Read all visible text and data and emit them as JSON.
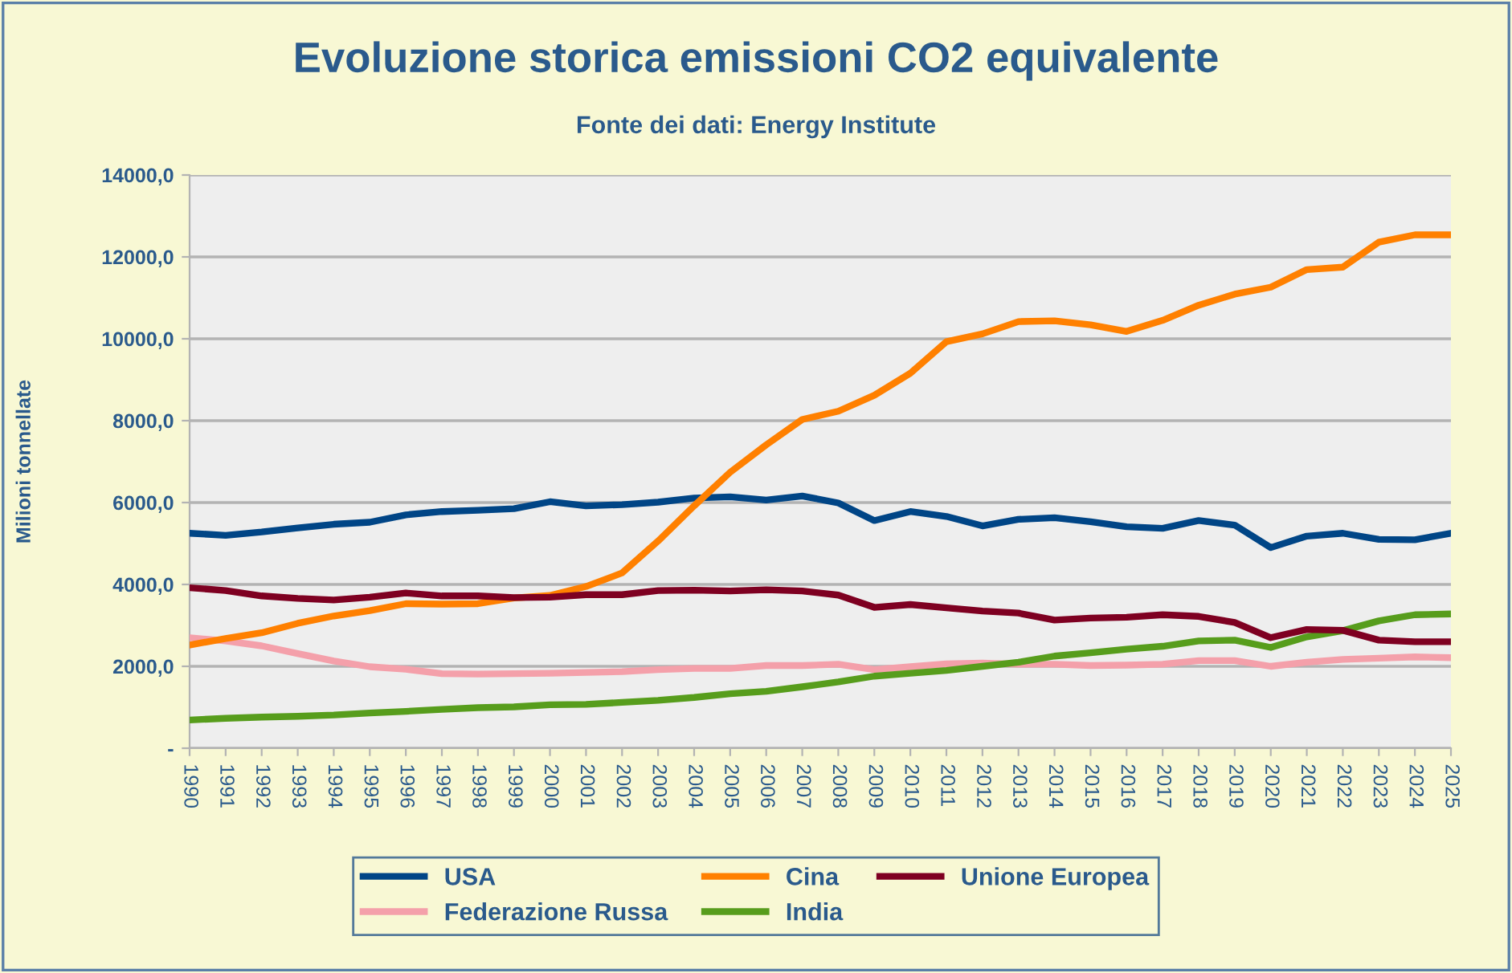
{
  "chart_data": {
    "type": "line",
    "title": "Evoluzione storica emissioni CO2 equivalente",
    "subtitle": "Fonte dei dati: Energy Institute",
    "ylabel": "Milioni tonnellate",
    "categories": [
      "1990",
      "1991",
      "1992",
      "1993",
      "1994",
      "1995",
      "1996",
      "1997",
      "1998",
      "1999",
      "2000",
      "2001",
      "2002",
      "2003",
      "2004",
      "2005",
      "2006",
      "2007",
      "2008",
      "2009",
      "2010",
      "2011",
      "2012",
      "2013",
      "2014",
      "2015",
      "2016",
      "2017",
      "2018",
      "2019",
      "2020",
      "2021",
      "2022",
      "2023",
      "2024",
      "2025"
    ],
    "series": [
      {
        "name": "USA",
        "color": "#004586",
        "values": [
          5250,
          5200,
          5280,
          5380,
          5470,
          5520,
          5700,
          5780,
          5810,
          5850,
          6020,
          5920,
          5950,
          6010,
          6110,
          6140,
          6060,
          6160,
          5990,
          5560,
          5780,
          5660,
          5430,
          5590,
          5630,
          5530,
          5410,
          5370,
          5560,
          5450,
          4900,
          5180,
          5250,
          5100,
          5090,
          5250
        ]
      },
      {
        "name": "Federazione Russa",
        "color": "#f4a0aa",
        "values": [
          2700,
          2620,
          2500,
          2310,
          2130,
          1990,
          1930,
          1820,
          1810,
          1820,
          1830,
          1850,
          1870,
          1920,
          1950,
          1950,
          2020,
          2020,
          2050,
          1920,
          1990,
          2060,
          2080,
          2050,
          2050,
          2020,
          2030,
          2050,
          2140,
          2140,
          2000,
          2100,
          2170,
          2200,
          2230,
          2210
        ]
      },
      {
        "name": "Cina",
        "color": "#ff8000",
        "values": [
          2520,
          2680,
          2820,
          3050,
          3230,
          3360,
          3530,
          3520,
          3530,
          3670,
          3730,
          3950,
          4280,
          5060,
          5920,
          6740,
          7410,
          8030,
          8230,
          8620,
          9160,
          9930,
          10120,
          10420,
          10440,
          10340,
          10180,
          10450,
          10820,
          11090,
          11260,
          11690,
          11750,
          12360,
          12540,
          12540
        ]
      },
      {
        "name": "India",
        "color": "#579d1c",
        "values": [
          690,
          730,
          760,
          780,
          810,
          860,
          900,
          950,
          990,
          1010,
          1060,
          1070,
          1120,
          1170,
          1240,
          1330,
          1390,
          1500,
          1620,
          1760,
          1830,
          1900,
          2000,
          2100,
          2250,
          2330,
          2420,
          2490,
          2620,
          2640,
          2460,
          2720,
          2870,
          3110,
          3260,
          3280
        ]
      },
      {
        "name": "Unione Europea",
        "color": "#7e0021",
        "values": [
          3920,
          3850,
          3720,
          3660,
          3620,
          3690,
          3790,
          3720,
          3720,
          3680,
          3690,
          3750,
          3750,
          3850,
          3860,
          3840,
          3870,
          3840,
          3740,
          3440,
          3510,
          3430,
          3350,
          3300,
          3130,
          3180,
          3200,
          3260,
          3220,
          3070,
          2700,
          2900,
          2880,
          2640,
          2600,
          2600
        ]
      }
    ],
    "ylim": [
      0,
      14000
    ],
    "yticks": [
      {
        "value": 0,
        "label": "-"
      },
      {
        "value": 2000,
        "label": "2000,0"
      },
      {
        "value": 4000,
        "label": "4000,0"
      },
      {
        "value": 6000,
        "label": "6000,0"
      },
      {
        "value": 8000,
        "label": "8000,0"
      },
      {
        "value": 10000,
        "label": "10000,0"
      },
      {
        "value": 12000,
        "label": "12000,0"
      },
      {
        "value": 14000,
        "label": "14000,0"
      }
    ],
    "grid": "y",
    "legend": "bottom",
    "marker": "none",
    "line_style": "solid"
  }
}
